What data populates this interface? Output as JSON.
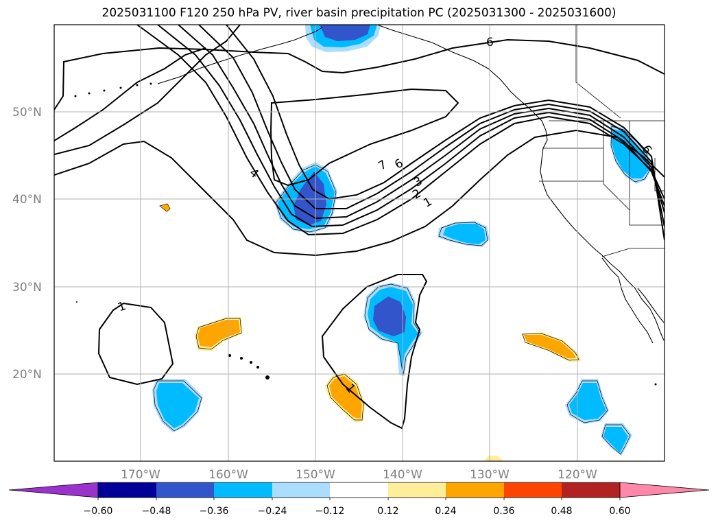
{
  "title": "2025031100 F120 250 hPa PV, river basin precipitation PC (2025031300 - 2025031600)",
  "latitude_labels": [
    "50°N",
    "40°N",
    "30°N",
    "20°N"
  ],
  "longitude_labels": [
    "170°W",
    "160°W",
    "150°W",
    "140°W",
    "130°W",
    "120°W"
  ],
  "contour_labels": [
    "6",
    "4",
    "7",
    "6",
    "3",
    "2",
    "1",
    "6",
    "1",
    "1"
  ],
  "colorbar": {
    "tick_labels": [
      "−0.60",
      "−0.48",
      "−0.36",
      "−0.24",
      "−0.12",
      "0.12",
      "0.24",
      "0.36",
      "0.48",
      "0.60"
    ],
    "colors": [
      "#9933cc",
      "#000099",
      "#3355cc",
      "#00bbff",
      "#aaddff",
      "#ffffff",
      "#ffee99",
      "#ffa500",
      "#ff4400",
      "#b22222",
      "#ff88aa"
    ]
  },
  "shading_colors": {
    "dark_blue": "#3355cc",
    "mid_blue": "#00bbff",
    "light_blue": "#aaddff",
    "orange": "#ffa500",
    "yellow": "#ffee99"
  }
}
